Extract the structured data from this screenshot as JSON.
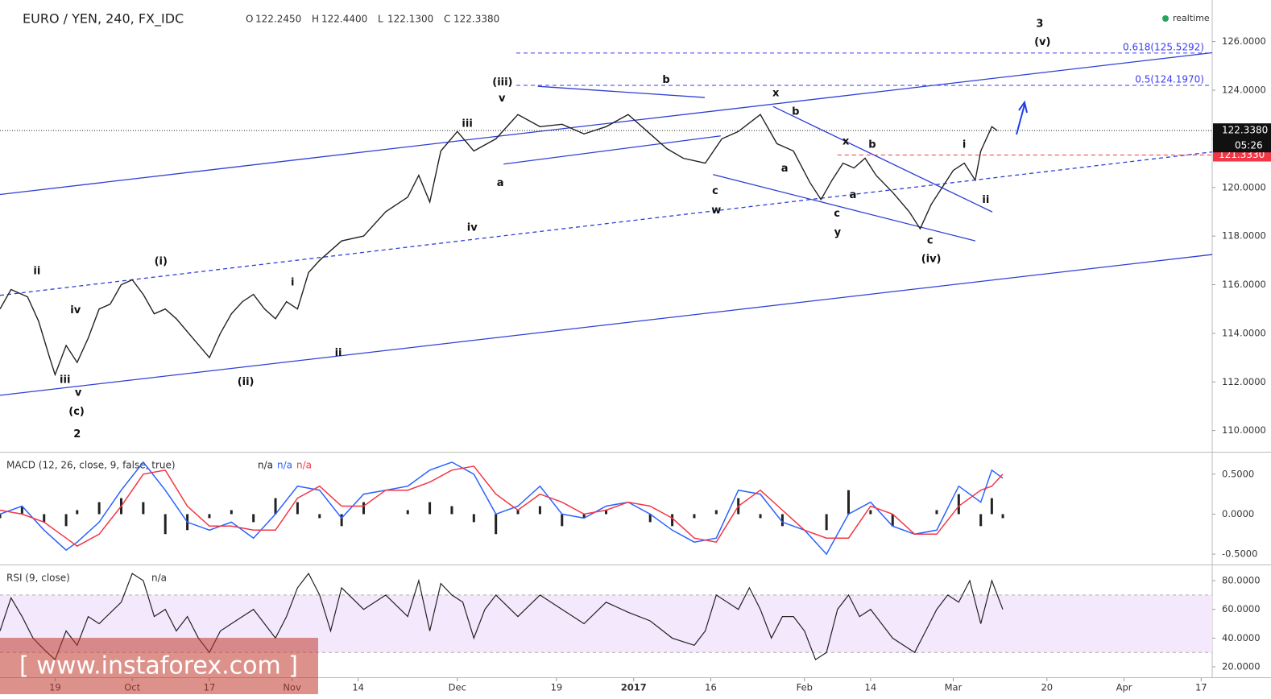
{
  "header": {
    "symbol": "EURO / YEN, 240, FX_IDC",
    "ohlc": [
      {
        "name": "O",
        "value": 122.245,
        "label": "122.2450"
      },
      {
        "name": "H",
        "value": 122.44,
        "label": "122.4400"
      },
      {
        "name": "L",
        "value": 122.13,
        "label": "122.1300"
      },
      {
        "name": "C",
        "value": 122.338,
        "label": "122.3380"
      }
    ],
    "status": "realtime",
    "watermark": "[ www.instaforex.com ]"
  },
  "chart_data": [
    {
      "type": "line",
      "name": "price",
      "xlim": [
        -10,
        210
      ],
      "ylim": [
        109.16,
        127.71
      ],
      "yticks": [
        {
          "value": 110,
          "label": "110.0000"
        },
        {
          "value": 112,
          "label": "112.0000"
        },
        {
          "value": 114,
          "label": "114.0000"
        },
        {
          "value": 116,
          "label": "116.0000"
        },
        {
          "value": 118,
          "label": "118.0000"
        },
        {
          "value": 120,
          "label": "120.0000"
        },
        {
          "value": 122,
          "label": "122.0000"
        },
        {
          "value": 124,
          "label": "124.0000"
        },
        {
          "value": 126,
          "label": "126.0000"
        }
      ],
      "series": [
        {
          "color": "#222222",
          "x": [
            -10,
            -8,
            -5,
            -3,
            -1,
            0,
            2,
            4,
            6,
            8,
            10,
            12,
            14,
            16,
            18,
            20,
            22,
            25,
            28,
            30,
            32,
            34,
            36,
            38,
            40,
            42,
            44,
            46,
            48,
            52,
            56,
            60,
            64,
            66,
            68,
            70,
            73,
            76,
            80,
            84,
            88,
            92,
            96,
            100,
            104,
            108,
            111,
            114,
            118,
            121,
            124,
            128,
            131,
            134,
            137,
            139,
            141,
            143,
            145,
            147,
            149,
            152,
            155,
            157,
            159,
            161,
            163,
            165,
            167,
            168,
            170,
            171
          ],
          "values": [
            115.0,
            115.8,
            115.5,
            114.5,
            113.0,
            112.3,
            113.5,
            112.8,
            113.8,
            115.0,
            115.2,
            116.0,
            116.2,
            115.6,
            114.8,
            115.0,
            114.6,
            113.8,
            113.0,
            114.0,
            114.8,
            115.3,
            115.6,
            115.0,
            114.6,
            115.3,
            115.0,
            116.5,
            117.0,
            117.8,
            118.0,
            119.0,
            119.6,
            120.5,
            119.4,
            121.5,
            122.3,
            121.5,
            122.0,
            123.0,
            122.5,
            122.6,
            122.2,
            122.5,
            123.0,
            122.2,
            121.6,
            121.2,
            121.0,
            122.0,
            122.3,
            123.0,
            121.8,
            121.5,
            120.2,
            119.5,
            120.3,
            121.0,
            120.8,
            121.2,
            120.5,
            119.8,
            119.0,
            118.3,
            119.3,
            120.0,
            120.7,
            121.0,
            120.3,
            121.5,
            122.5,
            122.338
          ]
        }
      ],
      "last_price": {
        "value": 122.338,
        "label": "122.3380"
      },
      "countdown": "05:26",
      "level": {
        "value": 121.333,
        "label": "121.3330",
        "color": "#f23645",
        "x": 142
      },
      "fib": {
        "x": 83.7,
        "color": "#3b3bf0",
        "levels": [
          {
            "value": 125.5292,
            "label": "0.618(125.5292)"
          },
          {
            "value": 124.197,
            "label": "0.5(124.1970)"
          }
        ]
      },
      "lines": [
        {
          "x": [
            -10,
            210
          ],
          "y": [
            119.71,
            125.54
          ],
          "color": "#2f3fd6",
          "dash": false
        },
        {
          "x": [
            -10,
            210
          ],
          "y": [
            111.45,
            117.24
          ],
          "color": "#2f3fd6",
          "dash": false
        },
        {
          "x": [
            -10,
            210
          ],
          "y": [
            115.56,
            121.46
          ],
          "color": "#2f3fd6",
          "dash": true
        },
        {
          "x": [
            87.6,
            117.9
          ],
          "y": [
            124.16,
            123.7
          ],
          "color": "#2f3fd6",
          "dash": false
        },
        {
          "x": [
            81.4,
            120.8
          ],
          "y": [
            120.96,
            122.12
          ],
          "color": "#2f3fd6",
          "dash": false
        },
        {
          "x": [
            130.3,
            170.1
          ],
          "y": [
            123.33,
            118.99
          ],
          "color": "#2f3fd6",
          "dash": false
        },
        {
          "x": [
            119.4,
            167.0
          ],
          "y": [
            120.53,
            117.8
          ],
          "color": "#2f3fd6",
          "dash": false
        }
      ],
      "annotations": [
        {
          "text": "ii",
          "x": -3.3,
          "y": 116.55
        },
        {
          "text": "iv",
          "x": 3.7,
          "y": 114.94
        },
        {
          "text": "iii",
          "x": 1.8,
          "y": 112.07
        },
        {
          "text": "v",
          "x": 4.2,
          "y": 111.55
        },
        {
          "text": "(c)",
          "x": 3.9,
          "y": 110.76
        },
        {
          "text": "2",
          "x": 4.0,
          "y": 109.84
        },
        {
          "text": "(i)",
          "x": 19.2,
          "y": 116.95
        },
        {
          "text": "(ii)",
          "x": 34.6,
          "y": 112.0
        },
        {
          "text": "i",
          "x": 43.1,
          "y": 116.09
        },
        {
          "text": "ii",
          "x": 51.4,
          "y": 113.19
        },
        {
          "text": "iii",
          "x": 74.8,
          "y": 122.61
        },
        {
          "text": "v",
          "x": 81.1,
          "y": 123.66
        },
        {
          "text": "(iii)",
          "x": 81.2,
          "y": 124.32
        },
        {
          "text": "a",
          "x": 80.8,
          "y": 120.17
        },
        {
          "text": "iv",
          "x": 75.7,
          "y": 118.33
        },
        {
          "text": "b",
          "x": 110.9,
          "y": 124.42
        },
        {
          "text": "c",
          "x": 119.8,
          "y": 119.84
        },
        {
          "text": "w",
          "x": 120.0,
          "y": 119.05
        },
        {
          "text": "x",
          "x": 130.8,
          "y": 123.86
        },
        {
          "text": "b",
          "x": 134.4,
          "y": 123.1
        },
        {
          "text": "a",
          "x": 132.4,
          "y": 120.77
        },
        {
          "text": "x",
          "x": 143.5,
          "y": 121.88
        },
        {
          "text": "b",
          "x": 148.3,
          "y": 121.75
        },
        {
          "text": "a",
          "x": 144.8,
          "y": 119.68
        },
        {
          "text": "c",
          "x": 141.9,
          "y": 118.92
        },
        {
          "text": "y",
          "x": 142.0,
          "y": 118.13
        },
        {
          "text": "c",
          "x": 158.8,
          "y": 117.8
        },
        {
          "text": "(iv)",
          "x": 159.0,
          "y": 117.05
        },
        {
          "text": "i",
          "x": 165.0,
          "y": 121.75
        },
        {
          "text": "ii",
          "x": 168.9,
          "y": 119.48
        },
        {
          "text": "3",
          "x": 178.7,
          "y": 126.72
        },
        {
          "text": "(v)",
          "x": 179.2,
          "y": 125.97
        }
      ]
    },
    {
      "type": "macd",
      "title": "MACD (12, 26, close, 9, false, true)",
      "legend": [
        "n/a",
        "n/a",
        "n/a"
      ],
      "xlim": [
        -10,
        210
      ],
      "ylim": [
        -0.62,
        0.76
      ],
      "yticks": [
        {
          "value": 0.5,
          "label": "0.5000"
        },
        {
          "value": 0,
          "label": "0.0000"
        },
        {
          "value": -0.5,
          "label": "-0.5000"
        }
      ],
      "x": [
        -10,
        -6,
        -2,
        2,
        4,
        8,
        12,
        16,
        20,
        24,
        28,
        32,
        36,
        40,
        44,
        48,
        52,
        56,
        60,
        64,
        68,
        72,
        76,
        80,
        84,
        88,
        92,
        96,
        100,
        104,
        108,
        112,
        116,
        120,
        124,
        128,
        132,
        136,
        140,
        144,
        148,
        152,
        156,
        160,
        164,
        168,
        170,
        172
      ],
      "series": [
        {
          "color": "#2962ff",
          "values": [
            0.0,
            0.1,
            -0.2,
            -0.45,
            -0.35,
            -0.1,
            0.3,
            0.65,
            0.3,
            -0.1,
            -0.2,
            -0.1,
            -0.3,
            0.0,
            0.35,
            0.3,
            -0.05,
            0.25,
            0.3,
            0.35,
            0.55,
            0.65,
            0.5,
            0.0,
            0.1,
            0.35,
            0.0,
            -0.05,
            0.1,
            0.15,
            0.0,
            -0.2,
            -0.35,
            -0.3,
            0.3,
            0.25,
            -0.1,
            -0.2,
            -0.5,
            0.0,
            0.15,
            -0.15,
            -0.25,
            -0.2,
            0.35,
            0.15,
            0.55,
            0.45
          ]
        },
        {
          "color": "#f23645",
          "values": [
            0.05,
            0.0,
            -0.1,
            -0.3,
            -0.4,
            -0.25,
            0.1,
            0.5,
            0.55,
            0.1,
            -0.15,
            -0.15,
            -0.2,
            -0.2,
            0.2,
            0.35,
            0.1,
            0.1,
            0.3,
            0.3,
            0.4,
            0.55,
            0.6,
            0.25,
            0.05,
            0.25,
            0.15,
            0.0,
            0.05,
            0.15,
            0.1,
            -0.05,
            -0.3,
            -0.35,
            0.1,
            0.3,
            0.05,
            -0.2,
            -0.3,
            -0.3,
            0.1,
            0.0,
            -0.25,
            -0.25,
            0.1,
            0.3,
            0.35,
            0.5
          ]
        }
      ],
      "histogram": {
        "color": "#222222",
        "values": [
          -0.05,
          0.1,
          -0.1,
          -0.15,
          0.05,
          0.15,
          0.2,
          0.15,
          -0.25,
          -0.2,
          -0.05,
          0.05,
          -0.1,
          0.2,
          0.15,
          -0.05,
          -0.15,
          0.15,
          0.0,
          0.05,
          0.15,
          0.1,
          -0.1,
          -0.25,
          0.05,
          0.1,
          -0.15,
          -0.05,
          0.05,
          0.0,
          -0.1,
          -0.15,
          -0.05,
          0.05,
          0.2,
          -0.05,
          -0.15,
          0.0,
          -0.2,
          0.3,
          0.05,
          -0.15,
          0.0,
          0.05,
          0.25,
          -0.15,
          0.2,
          -0.05
        ]
      }
    },
    {
      "type": "rsi",
      "title": "RSI (9, close)",
      "legend": [
        "n/a"
      ],
      "xlim": [
        -10,
        210
      ],
      "ylim": [
        13.3,
        90.1
      ],
      "yticks": [
        {
          "value": 20,
          "label": "20.0000"
        },
        {
          "value": 40,
          "label": "40.0000"
        },
        {
          "value": 60,
          "label": "60.0000"
        },
        {
          "value": 80,
          "label": "80.0000"
        }
      ],
      "band": [
        30,
        70
      ],
      "band_color": "#f3e8fc",
      "series": [
        {
          "color": "#222222",
          "x": [
            -10,
            -8,
            -6,
            -4,
            -2,
            0,
            2,
            4,
            6,
            8,
            12,
            14,
            16,
            18,
            20,
            22,
            24,
            26,
            28,
            30,
            32,
            36,
            38,
            40,
            42,
            44,
            46,
            48,
            50,
            52,
            56,
            60,
            64,
            66,
            68,
            70,
            72,
            74,
            76,
            78,
            80,
            84,
            88,
            92,
            96,
            100,
            104,
            108,
            112,
            116,
            118,
            120,
            124,
            126,
            128,
            130,
            132,
            134,
            136,
            138,
            140,
            142,
            144,
            146,
            148,
            152,
            156,
            158,
            160,
            162,
            164,
            166,
            168,
            170,
            172
          ],
          "values": [
            45,
            68,
            55,
            40,
            32,
            25,
            45,
            35,
            55,
            50,
            65,
            85,
            80,
            55,
            60,
            45,
            55,
            40,
            30,
            45,
            50,
            60,
            50,
            40,
            55,
            75,
            85,
            70,
            45,
            75,
            60,
            70,
            55,
            80,
            45,
            78,
            70,
            65,
            40,
            60,
            70,
            55,
            70,
            60,
            50,
            65,
            58,
            52,
            40,
            35,
            45,
            70,
            60,
            75,
            60,
            40,
            55,
            55,
            45,
            25,
            30,
            60,
            70,
            55,
            60,
            40,
            30,
            45,
            60,
            70,
            65,
            80,
            50,
            80,
            60
          ]
        }
      ],
      "xticks": [
        {
          "value": 0,
          "label": "19"
        },
        {
          "value": 14,
          "label": "Oct"
        },
        {
          "value": 28,
          "label": "17"
        },
        {
          "value": 43,
          "label": "Nov"
        },
        {
          "value": 55,
          "label": "14"
        },
        {
          "value": 73,
          "label": "Dec"
        },
        {
          "value": 91,
          "label": "19"
        },
        {
          "value": 105,
          "label": "2017"
        },
        {
          "value": 119,
          "label": "16"
        },
        {
          "value": 136,
          "label": "Feb"
        },
        {
          "value": 148,
          "label": "14"
        },
        {
          "value": 163,
          "label": "Mar"
        },
        {
          "value": 180,
          "label": "20"
        },
        {
          "value": 194,
          "label": "Apr"
        },
        {
          "value": 208,
          "label": "17"
        }
      ]
    }
  ]
}
